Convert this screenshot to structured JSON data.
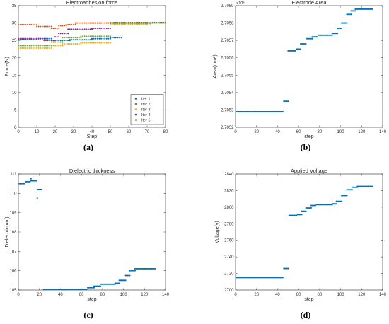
{
  "figure_captions": [
    "(a)",
    "(b)",
    "(c)",
    "(d)"
  ],
  "chart_data": [
    {
      "type": "scatter",
      "title": "Electroadhesion force",
      "xlabel": "Step",
      "ylabel": "Force(N)",
      "xlim": [
        0,
        80
      ],
      "ylim": [
        0,
        35
      ],
      "xticks": [
        "0",
        "10",
        "20",
        "30",
        "40",
        "50",
        "60",
        "70",
        "80"
      ],
      "yticks": [
        "0",
        "5",
        "10",
        "15",
        "20",
        "25",
        "30",
        "35"
      ],
      "legend": "bottom-right",
      "series": [
        {
          "name": "Iter 1",
          "color": "#0072BD",
          "segments": [
            [
              0,
              10,
              25.3
            ],
            [
              10,
              18,
              25.5
            ],
            [
              18,
              28,
              25.0
            ],
            [
              28,
              40,
              25.2
            ],
            [
              40,
              50,
              25.5
            ],
            [
              50,
              56,
              25.8
            ],
            [
              50,
              72,
              29.8
            ]
          ]
        },
        {
          "name": "Iter 2",
          "color": "#D95319",
          "segments": [
            [
              0,
              10,
              29.5
            ],
            [
              10,
              18,
              29.0
            ],
            [
              18,
              22,
              28.5
            ],
            [
              22,
              26,
              29.2
            ],
            [
              26,
              31,
              29.5
            ],
            [
              31,
              50,
              30.0
            ],
            [
              50,
              80,
              30.1
            ]
          ]
        },
        {
          "name": "Iter 3",
          "color": "#EDB120",
          "segments": [
            [
              0,
              18,
              22.8
            ],
            [
              18,
              24,
              23.5
            ],
            [
              24,
              34,
              24.0
            ],
            [
              34,
              50,
              24.3
            ],
            [
              50,
              70,
              29.6
            ],
            [
              70,
              80,
              30.0
            ]
          ]
        },
        {
          "name": "Iter 4",
          "color": "#7E2F8E",
          "segments": [
            [
              0,
              14,
              25.5
            ],
            [
              14,
              20,
              25.0
            ],
            [
              20,
              22,
              26.0
            ],
            [
              22,
              27,
              27.0
            ],
            [
              27,
              40,
              28.2
            ],
            [
              40,
              50,
              28.5
            ],
            [
              50,
              80,
              30.1
            ]
          ]
        },
        {
          "name": "Iter 5",
          "color": "#77AC30",
          "segments": [
            [
              0,
              18,
              23.5
            ],
            [
              18,
              24,
              24.5
            ],
            [
              24,
              34,
              25.8
            ],
            [
              34,
              50,
              26.2
            ],
            [
              50,
              80,
              30.0
            ]
          ]
        }
      ]
    },
    {
      "type": "scatter",
      "title": "Electrode Area",
      "xlabel": "step",
      "ylabel": "Area(mm²)",
      "exponent": "×10⁴",
      "xlim": [
        0,
        140
      ],
      "ylim": [
        2.7052,
        2.7059
      ],
      "xticks": [
        "0",
        "20",
        "40",
        "60",
        "80",
        "100",
        "120",
        "140"
      ],
      "yticks": [
        "2.7052",
        "2.7053",
        "2.7054",
        "2.7055",
        "2.7056",
        "2.7057",
        "2.7058",
        "2.7059"
      ],
      "series": [
        {
          "name": "",
          "color": "#0072BD",
          "segments": [
            [
              1,
              45,
              2.70529
            ],
            [
              46,
              50,
              2.70535
            ],
            [
              50,
              57,
              2.70564
            ],
            [
              58,
              62,
              2.70565
            ],
            [
              62,
              67,
              2.70568
            ],
            [
              68,
              73,
              2.70571
            ],
            [
              73,
              78,
              2.70572
            ],
            [
              79,
              92,
              2.70573
            ],
            [
              92,
              97,
              2.70574
            ],
            [
              97,
              101,
              2.70577
            ],
            [
              101,
              106,
              2.7058
            ],
            [
              106,
              110,
              2.70585
            ],
            [
              110,
              114,
              2.70587
            ],
            [
              114,
              130,
              2.70588
            ]
          ]
        }
      ]
    },
    {
      "type": "scatter",
      "title": "Dielectric thickness",
      "xlabel": "step",
      "ylabel": "Dielectric(um)",
      "xlim": [
        0,
        140
      ],
      "ylim": [
        105,
        111
      ],
      "xticks": [
        "0",
        "20",
        "40",
        "60",
        "80",
        "100",
        "120",
        "140"
      ],
      "yticks": [
        "105",
        "106",
        "107",
        "108",
        "109",
        "110",
        "111"
      ],
      "series": [
        {
          "name": "",
          "color": "#0072BD",
          "segments": [
            [
              1,
              6,
              110.5
            ],
            [
              7,
              11,
              110.6
            ],
            [
              12,
              17,
              110.65
            ],
            [
              18,
              22,
              110.2
            ],
            [
              24,
              65,
              105.03
            ],
            [
              66,
              72,
              105.12
            ],
            [
              72,
              78,
              105.2
            ],
            [
              78,
              92,
              105.3
            ],
            [
              92,
              96,
              105.35
            ],
            [
              96,
              102,
              105.5
            ],
            [
              102,
              106,
              105.75
            ],
            [
              106,
              111,
              106.0
            ],
            [
              111,
              130,
              106.1
            ]
          ]
        },
        {
          "name": "",
          "color": "#0072BD",
          "points": [
            [
              12,
              110.75
            ],
            [
              18,
              109.75
            ]
          ]
        }
      ]
    },
    {
      "type": "scatter",
      "title": "Applied Voltage",
      "xlabel": "step",
      "ylabel": "Voltage(v)",
      "xlim": [
        0,
        140
      ],
      "ylim": [
        2700,
        2840
      ],
      "xticks": [
        "0",
        "20",
        "40",
        "60",
        "80",
        "100",
        "120",
        "140"
      ],
      "yticks": [
        "2700",
        "2720",
        "2740",
        "2760",
        "2780",
        "2800",
        "2820",
        "2840"
      ],
      "series": [
        {
          "name": "",
          "color": "#0072BD",
          "segments": [
            [
              1,
              45,
              2715
            ],
            [
              46,
              50,
              2726
            ],
            [
              51,
              58,
              2790
            ],
            [
              59,
              63,
              2791
            ],
            [
              63,
              67,
              2795
            ],
            [
              67,
              72,
              2799
            ],
            [
              72,
              76,
              2802
            ],
            [
              77,
              92,
              2803
            ],
            [
              92,
              96,
              2804
            ],
            [
              96,
              101,
              2807
            ],
            [
              101,
              106,
              2814
            ],
            [
              106,
              111,
              2821
            ],
            [
              111,
              116,
              2824
            ],
            [
              116,
              130,
              2825
            ]
          ]
        }
      ]
    }
  ]
}
